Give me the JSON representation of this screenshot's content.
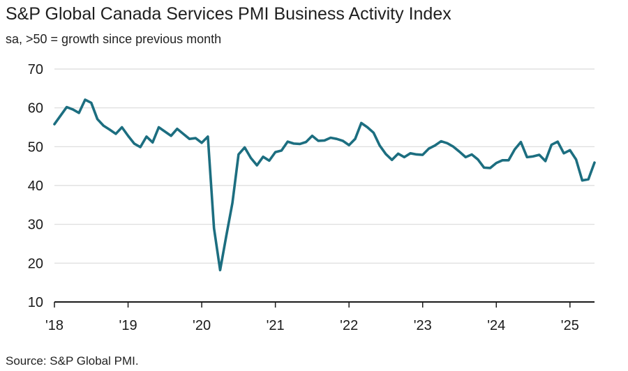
{
  "title": "S&P Global Canada Services PMI Business Activity Index",
  "subtitle": "sa, >50 = growth since previous month",
  "source": "Source: S&P Global PMI.",
  "colors": {
    "line": "#1c6e80",
    "grid": "#d9d9d9",
    "axis": "#1a1a1a"
  },
  "chart_data": {
    "type": "line",
    "title": "S&P Global Canada Services PMI Business Activity Index",
    "subtitle": "sa, >50 = growth since previous month",
    "xlabel": "",
    "ylabel": "",
    "ylim": [
      10,
      70
    ],
    "yticks": [
      10,
      20,
      30,
      40,
      50,
      60,
      70
    ],
    "xticks": [
      {
        "label": "'18",
        "year": 2018
      },
      {
        "label": "'19",
        "year": 2019
      },
      {
        "label": "'20",
        "year": 2020
      },
      {
        "label": "'21",
        "year": 2021
      },
      {
        "label": "'22",
        "year": 2022
      },
      {
        "label": "'23",
        "year": 2023
      },
      {
        "label": "'24",
        "year": 2024
      },
      {
        "label": "'25",
        "year": 2025
      }
    ],
    "grid": "horizontal",
    "x_start": "2018-01",
    "x_end": "2025-05",
    "series": [
      {
        "values": [
          55.8,
          58.0,
          60.2,
          59.6,
          58.7,
          62.1,
          61.3,
          57.1,
          55.4,
          54.4,
          53.3,
          55.0,
          52.8,
          50.8,
          49.9,
          52.6,
          51.1,
          55.0,
          53.9,
          52.8,
          54.6,
          53.3,
          52.0,
          52.2,
          51.0,
          52.6,
          29.0,
          18.2,
          27.0,
          35.5,
          48.0,
          49.8,
          47.1,
          45.2,
          47.4,
          46.4,
          48.6,
          49.0,
          51.3,
          50.8,
          50.7,
          51.2,
          52.8,
          51.5,
          51.6,
          52.3,
          52.0,
          51.5,
          50.4,
          52.0,
          56.1,
          55.0,
          53.6,
          50.3,
          48.1,
          46.6,
          48.2,
          47.3,
          48.3,
          48.0,
          47.9,
          49.5,
          50.3,
          51.4,
          50.9,
          50.0,
          48.7,
          47.3,
          48.0,
          46.7,
          44.6,
          44.5,
          45.8,
          46.5,
          46.5,
          49.3,
          51.2,
          47.3,
          47.5,
          47.9,
          46.3,
          50.5,
          51.3,
          48.3,
          49.1,
          46.7,
          41.3,
          41.6,
          45.9
        ]
      }
    ]
  }
}
